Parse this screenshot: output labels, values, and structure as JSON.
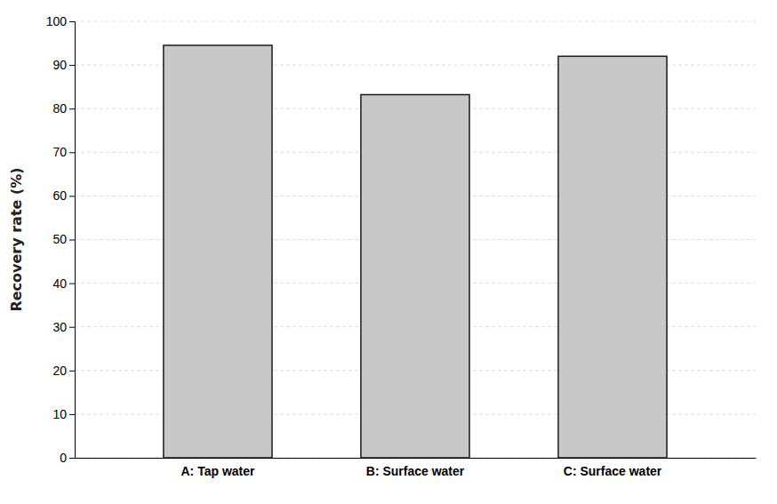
{
  "chart_data": {
    "type": "bar",
    "categories": [
      "A: Tap water",
      "B: Surface water",
      "C: Surface water"
    ],
    "values": [
      94.5,
      83.2,
      92.0
    ],
    "color": "#c8c8c8",
    "ylabel": "Recovery rate (%)",
    "ylim": [
      0,
      100
    ],
    "yticks": [
      0,
      10,
      20,
      30,
      40,
      50,
      60,
      70,
      80,
      90,
      100
    ],
    "grid": true
  }
}
